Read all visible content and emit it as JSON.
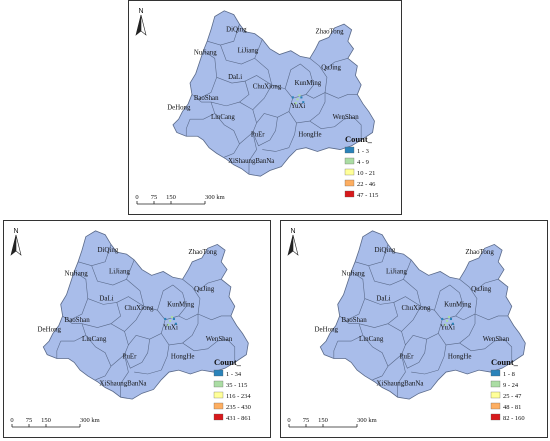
{
  "colors": {
    "province_fill": "#a9bdea",
    "boundary": "#5a6a8a",
    "legend_classes": [
      "#2b83ba",
      "#abdda4",
      "#ffff99",
      "#fdae61",
      "#d7191c"
    ]
  },
  "north_arrow": {
    "label": "N"
  },
  "prefectures": [
    "DiQing",
    "NuJiang",
    "LiJiang",
    "ZhaoTong",
    "QuJing",
    "DaLi",
    "KunMing",
    "ChuXiong",
    "BaoShan",
    "DeHong",
    "YuXi",
    "LinCang",
    "WenShan",
    "PuEr",
    "HongHe",
    "XiShaungBanNa"
  ],
  "maps": [
    {
      "legend_title": "Count_",
      "legend_items": [
        "1 - 3",
        "4 - 9",
        "10 - 21",
        "22 - 46",
        "47 - 115"
      ],
      "scale_labels": [
        "0",
        "75",
        "150",
        "300 km"
      ]
    },
    {
      "legend_title": "Count_",
      "legend_items": [
        "1 - 34",
        "35 - 115",
        "116 - 234",
        "235 - 430",
        "431 - 861"
      ],
      "scale_labels": [
        "0",
        "75",
        "150",
        "300 km"
      ]
    },
    {
      "legend_title": "Count_",
      "legend_items": [
        "1 - 8",
        "9 - 24",
        "25 - 47",
        "48 - 81",
        "82 - 160"
      ],
      "scale_labels": [
        "0",
        "75",
        "150",
        "300 km"
      ]
    }
  ]
}
